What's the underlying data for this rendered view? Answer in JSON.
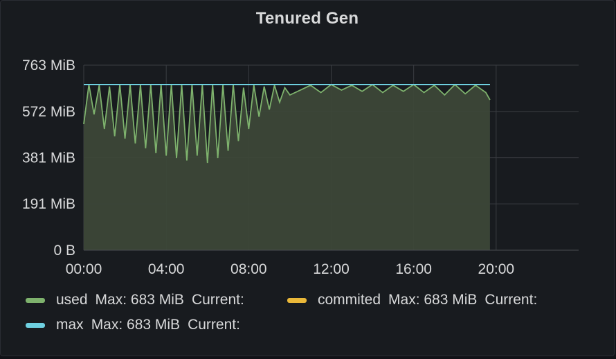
{
  "panel": {
    "title": "Tenured Gen"
  },
  "colors": {
    "used": "#7eb26d",
    "commited": "#eab839",
    "max": "#6ed0e0",
    "grid": "#3a3d42",
    "fill": "#3c4738"
  },
  "legend": [
    {
      "name": "used",
      "max_label": "Max: 683 MiB",
      "current_label": "Current:",
      "color": "#7eb26d"
    },
    {
      "name": "commited",
      "max_label": "Max: 683 MiB",
      "current_label": "Current:",
      "color": "#eab839"
    },
    {
      "name": "max",
      "max_label": "Max: 683 MiB",
      "current_label": "Current:",
      "color": "#6ed0e0"
    }
  ],
  "chart_data": {
    "type": "area",
    "title": "Tenured Gen",
    "y_unit": "MiB",
    "ylim": [
      0,
      763
    ],
    "y_ticks": [
      0,
      191,
      381,
      572,
      763
    ],
    "y_tick_labels": [
      "0 B",
      "191 MiB",
      "381 MiB",
      "572 MiB",
      "763 MiB"
    ],
    "xlim_hours": [
      0,
      24
    ],
    "x_ticks_hours": [
      0,
      4,
      8,
      12,
      16,
      20
    ],
    "x_tick_labels": [
      "00:00",
      "04:00",
      "08:00",
      "12:00",
      "16:00",
      "20:00"
    ],
    "grid": true,
    "legend_position": "bottom",
    "series": [
      {
        "name": "used",
        "x_hours": [
          0,
          0.25,
          0.5,
          0.75,
          1.0,
          1.25,
          1.5,
          1.75,
          2.0,
          2.25,
          2.5,
          2.75,
          3.0,
          3.25,
          3.5,
          3.75,
          4.0,
          4.25,
          4.5,
          4.75,
          5.0,
          5.25,
          5.5,
          5.75,
          6.0,
          6.25,
          6.5,
          6.75,
          7.0,
          7.25,
          7.5,
          7.75,
          8.0,
          8.25,
          8.5,
          8.75,
          9.0,
          9.25,
          9.5,
          9.75,
          10.0,
          10.5,
          11.0,
          11.5,
          12.0,
          12.5,
          13.0,
          13.5,
          14.0,
          14.5,
          15.0,
          15.5,
          16.0,
          16.5,
          17.0,
          17.5,
          18.0,
          18.5,
          19.0,
          19.5,
          19.7
        ],
        "values": [
          520,
          683,
          560,
          680,
          500,
          675,
          470,
          683,
          460,
          683,
          440,
          683,
          420,
          683,
          400,
          683,
          390,
          683,
          380,
          683,
          370,
          683,
          390,
          683,
          360,
          683,
          380,
          683,
          410,
          683,
          450,
          670,
          500,
          680,
          550,
          675,
          580,
          680,
          610,
          670,
          640,
          660,
          680,
          650,
          683,
          660,
          680,
          655,
          683,
          650,
          680,
          655,
          683,
          650,
          680,
          640,
          683,
          645,
          680,
          650,
          620
        ]
      },
      {
        "name": "commited",
        "x_hours": [
          0,
          19.7
        ],
        "values": [
          683,
          683
        ]
      },
      {
        "name": "max",
        "x_hours": [
          0,
          19.7
        ],
        "values": [
          683,
          683
        ]
      }
    ]
  }
}
